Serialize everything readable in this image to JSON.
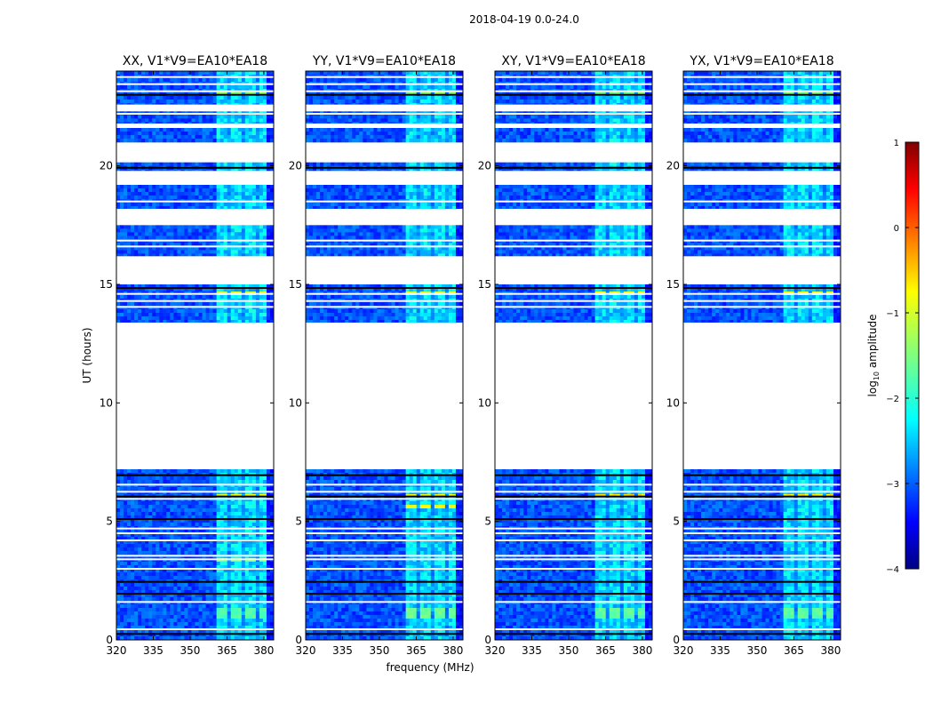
{
  "figure": {
    "suptitle": "2018-04-19 0.0-24.0",
    "ylabel": "UT (hours)",
    "xlabel": "frequency (MHz)"
  },
  "colorbar": {
    "label": "log",
    "label_sub": "10",
    "label_rest": " amplitude",
    "range": [
      -4,
      1
    ],
    "ticks": [
      "1",
      "0",
      "−1",
      "−2",
      "−3",
      "−4"
    ],
    "tick_values": [
      1,
      0,
      -1,
      -2,
      -3,
      -4
    ],
    "colormap": "jet",
    "jet_stops": [
      "#000080",
      "#0000ff",
      "#00ffff",
      "#ffff00",
      "#ff0000",
      "#800000"
    ]
  },
  "chart_data": {
    "type": "heatmap",
    "x_range": [
      320,
      384
    ],
    "y_range": [
      0,
      24
    ],
    "x_ticks": [
      320,
      335,
      350,
      365,
      380
    ],
    "x_tick_labels": [
      "320",
      "335",
      "350",
      "365",
      "380"
    ],
    "y_ticks": [
      0,
      5,
      10,
      15,
      20
    ],
    "y_tick_labels": [
      "0",
      "5",
      "10",
      "15",
      "20"
    ],
    "rfi_band_mhz": [
      360.5,
      380.5
    ],
    "rfi_channels_mhz": [
      [
        360.5,
        364.5
      ],
      [
        366.5,
        370.5
      ],
      [
        372.5,
        376.5
      ],
      [
        377.5,
        380.5
      ]
    ],
    "data_blocks_ut": [
      [
        0.0,
        7.2
      ],
      [
        13.4,
        15.0
      ],
      [
        16.2,
        17.5
      ],
      [
        18.2,
        19.2
      ],
      [
        19.8,
        20.15
      ],
      [
        21.0,
        21.6
      ],
      [
        21.8,
        22.3
      ],
      [
        22.6,
        24.0
      ]
    ],
    "gap_lines_ut": [
      0.45,
      1.6,
      3.0,
      3.4,
      3.55,
      4.2,
      4.5,
      4.7,
      5.95,
      6.25,
      6.55,
      14.05,
      14.3,
      14.6,
      16.6,
      16.85,
      18.5,
      22.2,
      23.15,
      23.45,
      23.75
    ],
    "dark_lines_ut": [
      0.25,
      1.95,
      2.45,
      5.1,
      6.05,
      6.95,
      14.85,
      19.92,
      23.0
    ],
    "series": [
      {
        "name": "XX",
        "title": "XX, V1*V9=EA10*EA18",
        "hot_bands_ut": [
          [
            0.9,
            1.4,
            -1.8
          ],
          [
            6.05,
            6.2,
            -0.9
          ],
          [
            14.62,
            14.75,
            -1.0
          ],
          [
            22.95,
            23.15,
            -1.4
          ],
          [
            3.3,
            3.4,
            -1.5
          ]
        ]
      },
      {
        "name": "YY",
        "title": "YY, V1*V9=EA10*EA18",
        "hot_bands_ut": [
          [
            0.9,
            1.4,
            -1.6
          ],
          [
            6.05,
            6.2,
            -0.8
          ],
          [
            5.6,
            5.7,
            -0.8
          ],
          [
            14.62,
            14.75,
            -1.0
          ],
          [
            22.95,
            23.15,
            -1.4
          ],
          [
            3.55,
            3.65,
            -1.5
          ]
        ]
      },
      {
        "name": "XY",
        "title": "XY, V1*V9=EA10*EA18",
        "hot_bands_ut": [
          [
            0.9,
            1.4,
            -1.7
          ],
          [
            6.05,
            6.2,
            -0.6
          ],
          [
            14.62,
            14.75,
            -0.9
          ],
          [
            22.95,
            23.15,
            -1.5
          ],
          [
            3.55,
            3.65,
            -1.5
          ]
        ]
      },
      {
        "name": "YX",
        "title": "YX, V1*V9=EA10*EA18",
        "hot_bands_ut": [
          [
            0.9,
            1.4,
            -1.7
          ],
          [
            6.05,
            6.2,
            -0.7
          ],
          [
            14.62,
            14.75,
            -0.9
          ],
          [
            22.95,
            23.15,
            -1.5
          ],
          [
            3.55,
            3.65,
            -1.5
          ]
        ]
      }
    ]
  }
}
